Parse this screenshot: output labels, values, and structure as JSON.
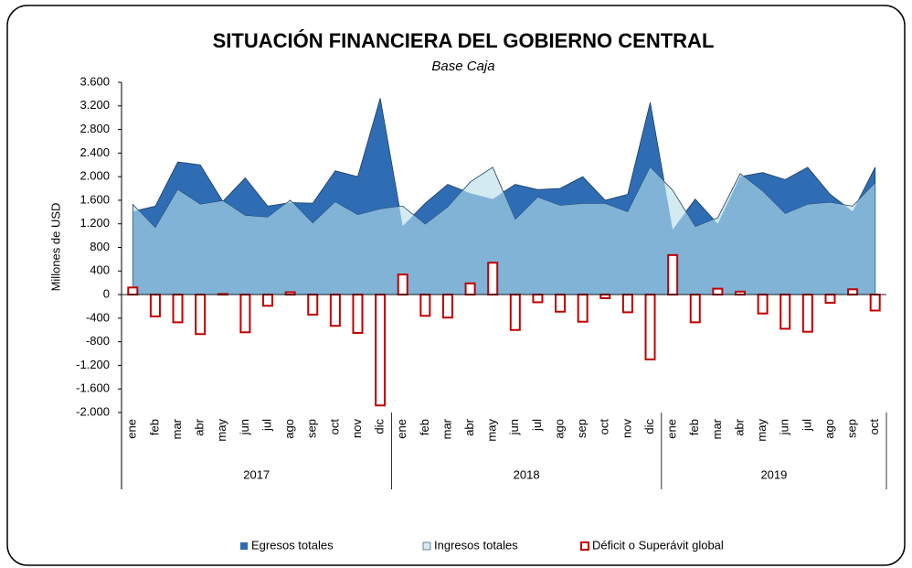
{
  "chart_data": {
    "type": "area-bar",
    "title": "SITUACIÓN FINANCIERA DEL GOBIERNO CENTRAL",
    "subtitle": "Base Caja",
    "y_label": "Millones de USD",
    "groups": [
      {
        "name": "2017",
        "categories": [
          "ene",
          "feb",
          "mar",
          "abr",
          "may",
          "jun",
          "jul",
          "ago",
          "sep",
          "oct",
          "nov",
          "dic"
        ]
      },
      {
        "name": "2018",
        "categories": [
          "ene",
          "feb",
          "mar",
          "abr",
          "may",
          "jun",
          "jul",
          "ago",
          "sep",
          "oct",
          "nov",
          "dic"
        ]
      },
      {
        "name": "2019",
        "categories": [
          "ene",
          "feb",
          "mar",
          "abr",
          "may",
          "jun",
          "jul",
          "ago",
          "sep",
          "oct"
        ]
      }
    ],
    "series": [
      {
        "name": "Egresos totales",
        "kind": "area",
        "color": "#2e6db4",
        "values": [
          1410,
          1500,
          2250,
          2200,
          1580,
          1980,
          1500,
          1560,
          1550,
          2100,
          2000,
          3330,
          1160,
          1550,
          1870,
          1720,
          1620,
          1870,
          1780,
          1800,
          2000,
          1600,
          1700,
          3260,
          1100,
          1620,
          1200,
          2000,
          2070,
          1950,
          2160,
          1700,
          1410,
          2160
        ]
      },
      {
        "name": "Ingresos totales",
        "kind": "area",
        "color": "#d3eaf0",
        "overlap_color": "#80b3d6",
        "values": [
          1530,
          1130,
          1780,
          1530,
          1590,
          1340,
          1310,
          1600,
          1210,
          1570,
          1350,
          1450,
          1500,
          1190,
          1480,
          1910,
          2160,
          1270,
          1650,
          1510,
          1540,
          1540,
          1400,
          2160,
          1770,
          1150,
          1300,
          2050,
          1750,
          1370,
          1530,
          1560,
          1500,
          1890
        ]
      },
      {
        "name": "Déficit o Superávit global",
        "kind": "bar",
        "color": "#c00000",
        "values": [
          120,
          -370,
          -470,
          -670,
          10,
          -640,
          -190,
          40,
          -340,
          -530,
          -650,
          -1880,
          340,
          -360,
          -390,
          190,
          540,
          -600,
          -130,
          -290,
          -460,
          -60,
          -300,
          -1100,
          670,
          -470,
          100,
          50,
          -320,
          -580,
          -630,
          -140,
          90,
          -270
        ]
      }
    ],
    "ylim": [
      -2000,
      3600
    ],
    "yticks": [
      -2000,
      -1600,
      -1200,
      -800,
      -400,
      0,
      400,
      800,
      1200,
      1600,
      2000,
      2400,
      2800,
      3200,
      3600
    ],
    "ytick_labels": [
      "-2.000",
      "-1.600",
      "-1.200",
      "-800",
      "-400",
      "0",
      "400",
      "800",
      "1.200",
      "1.600",
      "2.000",
      "2.400",
      "2.800",
      "3.200",
      "3.600"
    ]
  }
}
